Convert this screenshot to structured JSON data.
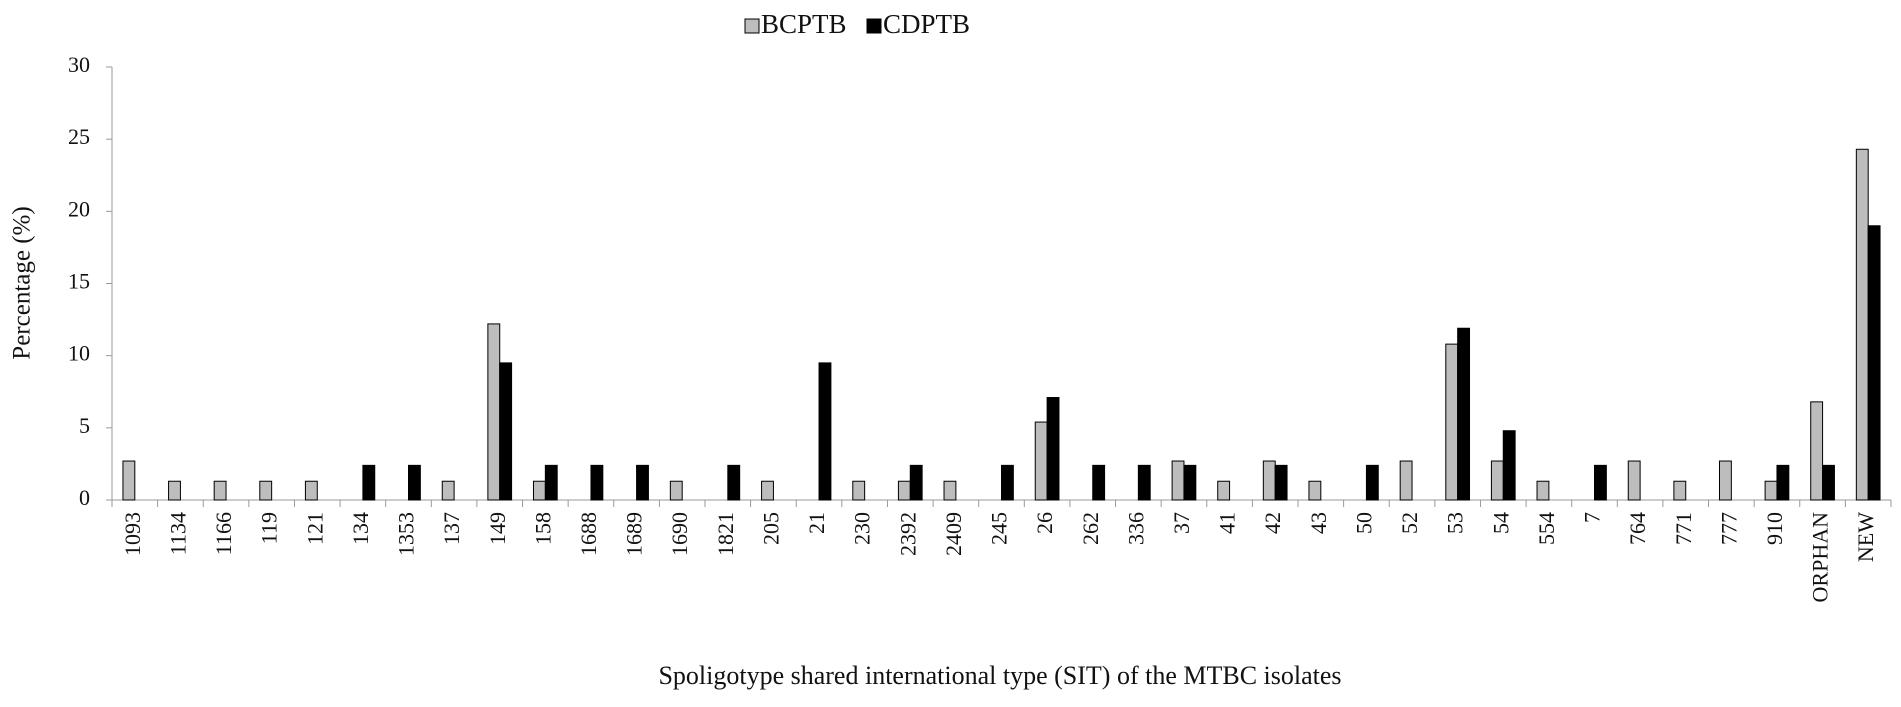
{
  "chart_data": {
    "type": "bar",
    "x_label": "Spoligotype shared  international type (SIT) of the MTBC isolates",
    "y_label": "Percentage (%)",
    "categories": [
      "1093",
      "1134",
      "1166",
      "119",
      "121",
      "134",
      "1353",
      "137",
      "149",
      "158",
      "1688",
      "1689",
      "1690",
      "1821",
      "205",
      "21",
      "230",
      "2392",
      "2409",
      "245",
      "26",
      "262",
      "336",
      "37",
      "41",
      "42",
      "43",
      "50",
      "52",
      "53",
      "54",
      "554",
      "7",
      "764",
      "771",
      "777",
      "910",
      "ORPHAN",
      "NEW"
    ],
    "series": [
      {
        "name": "BCPTB",
        "color": "#bdbdbd",
        "values": [
          2.7,
          1.3,
          1.3,
          1.3,
          1.3,
          0,
          0,
          1.3,
          12.2,
          1.3,
          0,
          0,
          1.3,
          0,
          1.3,
          0,
          1.3,
          1.3,
          1.3,
          0,
          5.4,
          0,
          0,
          2.7,
          1.3,
          2.7,
          1.3,
          0,
          2.7,
          10.8,
          2.7,
          1.3,
          0,
          2.7,
          1.3,
          2.7,
          1.3,
          6.8,
          24.3
        ]
      },
      {
        "name": "CDPTB",
        "color": "#000000",
        "values": [
          0,
          0,
          0,
          0,
          0,
          2.4,
          2.4,
          0,
          9.5,
          2.4,
          2.4,
          2.4,
          0,
          2.4,
          0,
          9.5,
          0,
          2.4,
          0,
          2.4,
          7.1,
          2.4,
          2.4,
          2.4,
          0,
          2.4,
          0,
          2.4,
          0,
          11.9,
          4.8,
          0,
          2.4,
          0,
          0,
          0,
          2.4,
          2.4,
          19.0
        ]
      }
    ],
    "ylim": [
      0,
      30
    ],
    "yticks": [
      0,
      5,
      10,
      15,
      20,
      25,
      30
    ],
    "legend": "top"
  }
}
